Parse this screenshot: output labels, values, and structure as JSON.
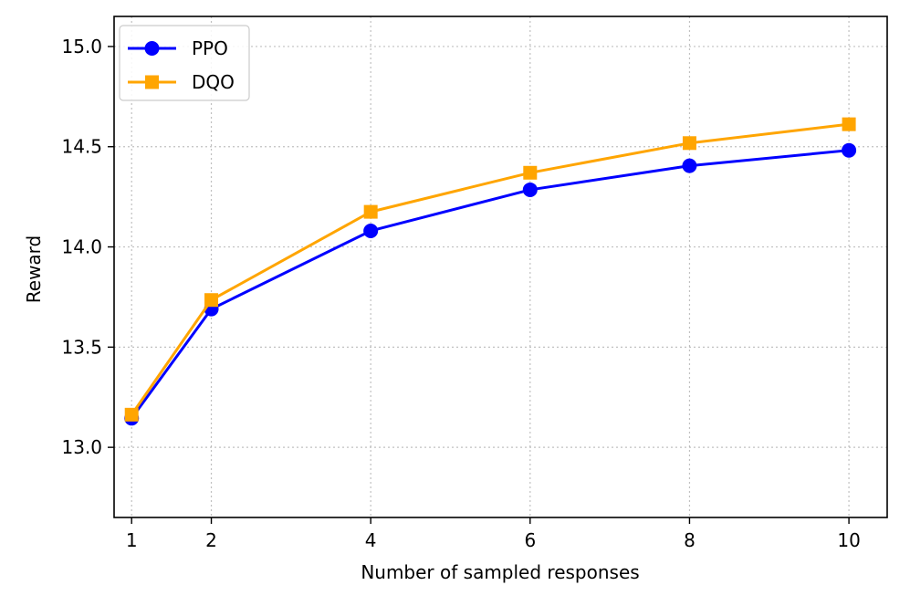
{
  "chart_data": {
    "type": "line",
    "title": "",
    "xlabel": "Number of sampled responses",
    "ylabel": "Reward",
    "x": [
      1,
      2,
      4,
      6,
      8,
      10
    ],
    "xticks": [
      1,
      2,
      4,
      6,
      8,
      10
    ],
    "xtick_labels": [
      "1",
      "2",
      "4",
      "6",
      "8",
      "10"
    ],
    "xlim": [
      0.78,
      10.48
    ],
    "yticks": [
      13.0,
      13.5,
      14.0,
      14.5,
      15.0
    ],
    "ytick_labels": [
      "13.0",
      "13.5",
      "14.0",
      "14.5",
      "15.0"
    ],
    "ylim": [
      12.65,
      15.15
    ],
    "grid": true,
    "legend_position": "top-left",
    "series": [
      {
        "name": "PPO",
        "color": "#0000ff",
        "marker": "circle",
        "values": [
          13.145,
          13.69,
          14.08,
          14.285,
          14.405,
          14.482
        ]
      },
      {
        "name": "DQO",
        "color": "#ffa500",
        "marker": "square",
        "values": [
          13.163,
          13.735,
          14.175,
          14.37,
          14.518,
          14.612
        ]
      }
    ]
  }
}
